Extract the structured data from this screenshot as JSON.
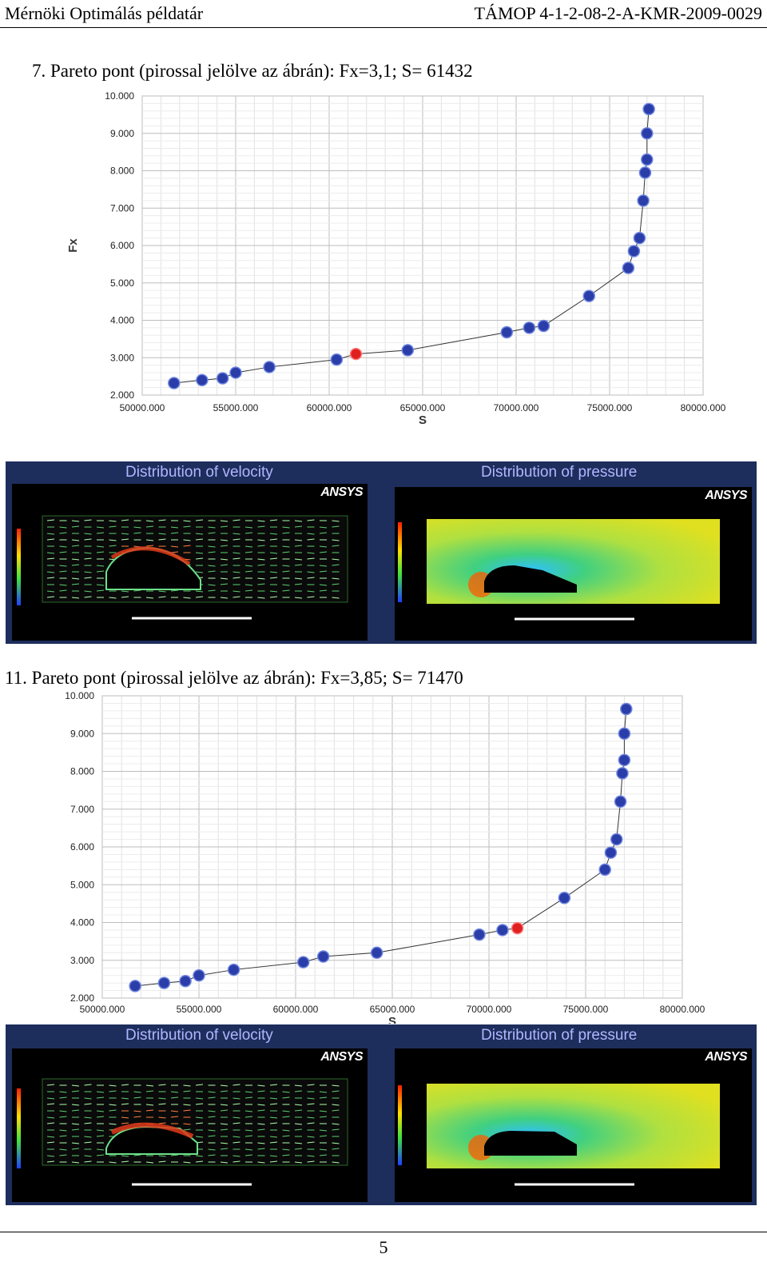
{
  "header": {
    "left": "Mérnöki Optimálás példatár",
    "right": "TÁMOP 4-1-2-08-2-A-KMR-2009-0029"
  },
  "section1": {
    "caption": "7. Pareto pont (pirossal jelölve az ábrán): Fx=3,1; S= 61432",
    "velocity_title": "Distribution of velocity",
    "pressure_title": "Distribution of pressure",
    "logo": "ANSYS"
  },
  "section2": {
    "caption": "11. Pareto pont (pirossal jelölve az ábrán): Fx=3,85; S= 71470",
    "velocity_title": "Distribution of velocity",
    "pressure_title": "Distribution of pressure",
    "logo": "ANSYS"
  },
  "page_number": "5",
  "colors": {
    "point": "#2a3da8",
    "highlight": "#e02020",
    "panel": "#1d2d5c"
  },
  "chart_data": [
    {
      "type": "scatter",
      "xlabel": "S",
      "ylabel": "Fx",
      "xlim": [
        50000,
        80000
      ],
      "ylim": [
        2,
        10
      ],
      "xticks": [
        "50000.000",
        "55000.000",
        "60000.000",
        "65000.000",
        "70000.000",
        "75000.000",
        "80000.000"
      ],
      "yticks": [
        "2.000",
        "3.000",
        "4.000",
        "5.000",
        "6.000",
        "7.000",
        "8.000",
        "9.000",
        "10.000"
      ],
      "grid": true,
      "points": [
        [
          51700,
          2.32
        ],
        [
          53200,
          2.4
        ],
        [
          54300,
          2.45
        ],
        [
          55000,
          2.6
        ],
        [
          56800,
          2.75
        ],
        [
          60400,
          2.95
        ],
        [
          61432,
          3.1
        ],
        [
          64200,
          3.2
        ],
        [
          69500,
          3.68
        ],
        [
          70700,
          3.8
        ],
        [
          71470,
          3.85
        ],
        [
          73900,
          4.65
        ],
        [
          76000,
          5.4
        ],
        [
          76300,
          5.85
        ],
        [
          76600,
          6.2
        ],
        [
          76800,
          7.2
        ],
        [
          76900,
          7.95
        ],
        [
          77000,
          8.3
        ],
        [
          77000,
          9.0
        ],
        [
          77100,
          9.65
        ]
      ],
      "highlight": [
        61432,
        3.1
      ]
    },
    {
      "type": "scatter",
      "xlabel": "S",
      "ylabel": "",
      "xlim": [
        50000,
        80000
      ],
      "ylim": [
        2,
        10
      ],
      "xticks": [
        "50000.000",
        "55000.000",
        "60000.000",
        "65000.000",
        "70000.000",
        "75000.000",
        "80000.000"
      ],
      "yticks": [
        "2.000",
        "3.000",
        "4.000",
        "5.000",
        "6.000",
        "7.000",
        "8.000",
        "9.000",
        "10.000"
      ],
      "grid": true,
      "points": [
        [
          51700,
          2.32
        ],
        [
          53200,
          2.4
        ],
        [
          54300,
          2.45
        ],
        [
          55000,
          2.6
        ],
        [
          56800,
          2.75
        ],
        [
          60400,
          2.95
        ],
        [
          61432,
          3.1
        ],
        [
          64200,
          3.2
        ],
        [
          69500,
          3.68
        ],
        [
          70700,
          3.8
        ],
        [
          71470,
          3.85
        ],
        [
          73900,
          4.65
        ],
        [
          76000,
          5.4
        ],
        [
          76300,
          5.85
        ],
        [
          76600,
          6.2
        ],
        [
          76800,
          7.2
        ],
        [
          76900,
          7.95
        ],
        [
          77000,
          8.3
        ],
        [
          77000,
          9.0
        ],
        [
          77100,
          9.65
        ]
      ],
      "highlight": [
        71470,
        3.85
      ]
    }
  ]
}
